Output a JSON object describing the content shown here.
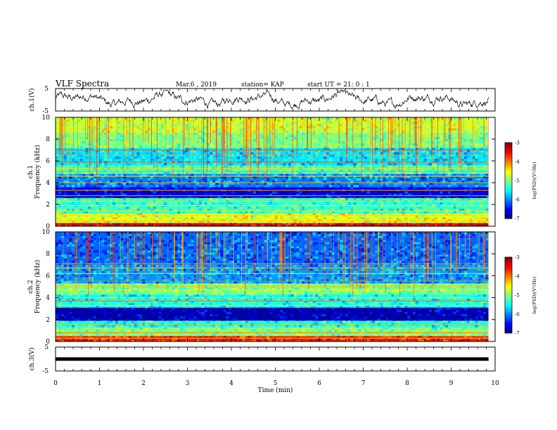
{
  "header": {
    "title": "VLF Spectra",
    "date": "Mar.6 , 2019",
    "station": "station= KAP",
    "start": "start  UT =  21: 0  : 1"
  },
  "colors": {
    "background": "#ffffff",
    "axes": "#000000",
    "trace": "#000000"
  },
  "chart_data": [
    {
      "type": "line",
      "name": "ch1-waveform",
      "ylabel": "ch.1(V)",
      "ylim": [
        -5,
        5
      ],
      "yticks": [
        "5",
        "-5"
      ],
      "xlim": [
        0,
        10
      ],
      "x_end": 9.85,
      "description": "noisy voltage trace oscillating between about -4 and 4 V"
    },
    {
      "type": "heatmap",
      "name": "ch1-spectrogram",
      "ylabel": "ch.1\nFrequency (kHz)",
      "ylim": [
        0,
        10
      ],
      "yticks": [
        "0",
        "2",
        "4",
        "6",
        "8",
        "10"
      ],
      "xlim": [
        0,
        10
      ],
      "x_end": 9.85,
      "colorbar": {
        "label": "log(PSD)(V²/Hz)",
        "range": [
          -7,
          -3
        ],
        "ticks": [
          "-3",
          "-4",
          "-5",
          "-6",
          "-7"
        ],
        "colormap": "jet"
      },
      "bands_kHz": [
        {
          "from": 0.0,
          "to": 0.3,
          "level": -3.4
        },
        {
          "from": 0.3,
          "to": 1.2,
          "level": -4.6
        },
        {
          "from": 1.2,
          "to": 2.6,
          "level": -5.3
        },
        {
          "from": 2.6,
          "to": 3.6,
          "level": -6.6
        },
        {
          "from": 3.6,
          "to": 4.8,
          "level": -6.0
        },
        {
          "from": 4.8,
          "to": 5.6,
          "level": -5.2
        },
        {
          "from": 5.6,
          "to": 7.2,
          "level": -5.6
        },
        {
          "from": 7.2,
          "to": 8.6,
          "level": -5.0
        },
        {
          "from": 8.6,
          "to": 10.0,
          "level": -4.7
        }
      ],
      "lines_kHz": [
        0.5,
        1.0,
        1.4,
        1.9,
        2.3,
        2.8,
        3.3,
        4.0,
        4.6,
        5.0,
        5.3,
        5.9,
        6.5,
        7.0
      ]
    },
    {
      "type": "heatmap",
      "name": "ch2-spectrogram",
      "ylabel": "ch.2\nFrequency (kHz)",
      "ylim": [
        0,
        10
      ],
      "yticks": [
        "0",
        "2",
        "4",
        "6",
        "8",
        "10"
      ],
      "xlim": [
        0,
        10
      ],
      "x_end": 9.85,
      "colorbar": {
        "label": "log(PSD)(V²/Hz)",
        "range": [
          -7,
          -3
        ],
        "ticks": [
          "-3",
          "-4",
          "-5",
          "-6",
          "-7"
        ],
        "colormap": "jet"
      },
      "bands_kHz": [
        {
          "from": 0.0,
          "to": 0.5,
          "level": -3.6
        },
        {
          "from": 0.5,
          "to": 1.3,
          "level": -5.0
        },
        {
          "from": 1.3,
          "to": 1.9,
          "level": -5.4
        },
        {
          "from": 1.9,
          "to": 3.1,
          "level": -6.8
        },
        {
          "from": 3.1,
          "to": 4.3,
          "level": -5.4
        },
        {
          "from": 4.3,
          "to": 5.3,
          "level": -5.0
        },
        {
          "from": 5.3,
          "to": 7.0,
          "level": -5.9
        },
        {
          "from": 7.0,
          "to": 10.0,
          "level": -6.1
        }
      ],
      "lines_kHz": [
        0.3,
        0.8,
        1.6,
        3.3,
        3.7,
        4.0,
        4.7,
        5.0,
        5.5,
        6.2,
        6.7,
        7.1
      ]
    },
    {
      "type": "line",
      "name": "ch3-waveform",
      "ylabel": "ch.3(V)",
      "ylim": [
        -5,
        5
      ],
      "yticks": [
        "5",
        "-5"
      ],
      "xlim": [
        0,
        10
      ],
      "x_end": 9.85,
      "value": 0,
      "xlabel": "Time (min)",
      "xticks": [
        "0",
        "1",
        "2",
        "3",
        "4",
        "5",
        "6",
        "7",
        "8",
        "9",
        "10"
      ]
    }
  ]
}
